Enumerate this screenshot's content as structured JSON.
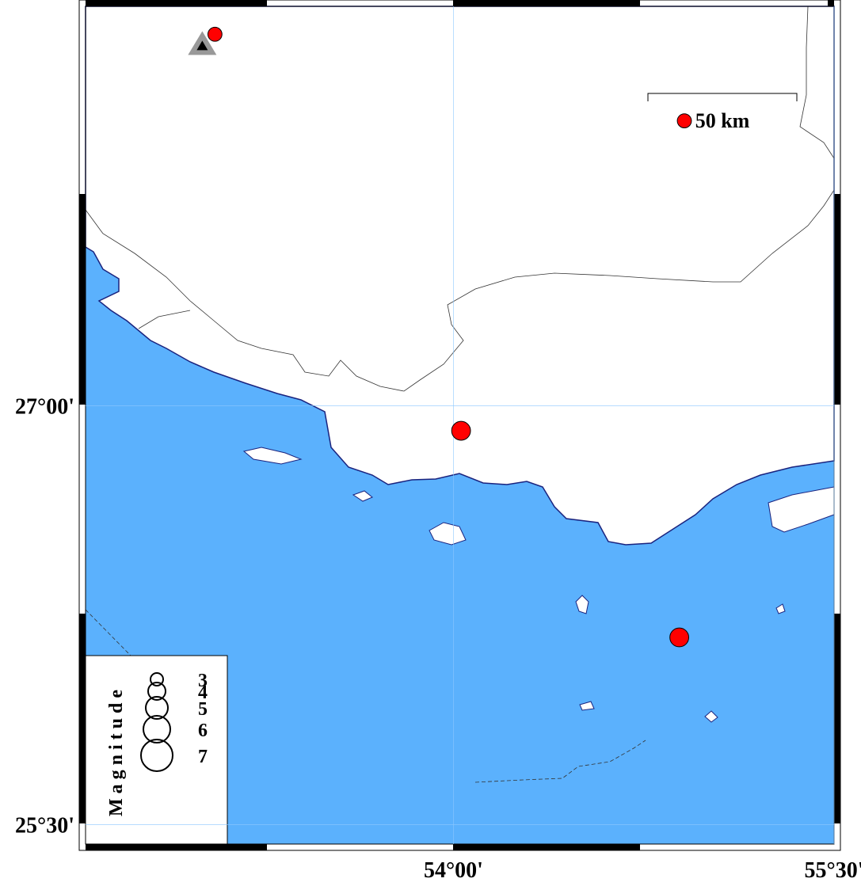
{
  "map": {
    "xlim": [
      52.55,
      55.5
    ],
    "ylim": [
      25.43,
      28.43
    ],
    "xticks": [
      {
        "value": 54,
        "label": "54°00'"
      },
      {
        "value": 55.5,
        "label": "55°30'"
      }
    ],
    "yticks": [
      {
        "value": 27,
        "label": "27°00'"
      },
      {
        "value": 25.5,
        "label": "25°30'"
      }
    ],
    "scale_label": "50 km",
    "station": {
      "lon": 53.01,
      "lat": 28.29
    },
    "events": [
      {
        "lon": 53.06,
        "lat": 28.33,
        "mag": 3.3
      },
      {
        "lon": 54.91,
        "lat": 28.02,
        "mag": 3.3
      },
      {
        "lon": 54.03,
        "lat": 26.91,
        "mag": 4.3
      },
      {
        "lon": 54.89,
        "lat": 26.17,
        "mag": 4.3
      }
    ],
    "event_color": "#ff0000",
    "legend": {
      "title": "Magnitude",
      "magnitudes": [
        3,
        4,
        5,
        6,
        7
      ]
    }
  }
}
